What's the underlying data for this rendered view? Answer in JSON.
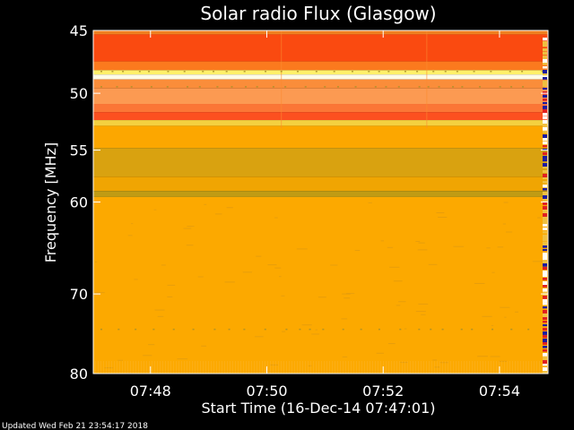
{
  "chart_data": {
    "type": "heatmap",
    "title": "Solar radio Flux (Glasgow)",
    "xlabel": "Start Time (16-Dec-14 07:47:01)",
    "ylabel": "Frequency [MHz]",
    "x_range_minutes": [
      "07:47:01",
      "07:54:50"
    ],
    "x_ticks": [
      "07:48",
      "07:50",
      "07:52",
      "07:54"
    ],
    "y_range_mhz": [
      45,
      80
    ],
    "y_scale": "log",
    "y_ticks": [
      45,
      50,
      55,
      60,
      70,
      80
    ],
    "segment_boundaries": [
      "07:50:15",
      "07:52:45"
    ],
    "bands": [
      {
        "from_mhz": 45.0,
        "to_mhz": 45.3,
        "color": "#f08020"
      },
      {
        "from_mhz": 45.3,
        "to_mhz": 47.4,
        "color": "#fa4a10"
      },
      {
        "from_mhz": 47.4,
        "to_mhz": 48.1,
        "color": "#fb7a1e"
      },
      {
        "from_mhz": 48.1,
        "to_mhz": 48.45,
        "color": "#fff06a"
      },
      {
        "from_mhz": 48.45,
        "to_mhz": 48.85,
        "color": "#fffbe6"
      },
      {
        "from_mhz": 48.85,
        "to_mhz": 49.6,
        "color": "#fa8d3a"
      },
      {
        "from_mhz": 49.6,
        "to_mhz": 50.9,
        "color": "#fc9a52"
      },
      {
        "from_mhz": 50.9,
        "to_mhz": 51.6,
        "color": "#fb7636"
      },
      {
        "from_mhz": 51.6,
        "to_mhz": 52.3,
        "color": "#fc5020"
      },
      {
        "from_mhz": 52.3,
        "to_mhz": 52.8,
        "color": "#f4d040"
      },
      {
        "from_mhz": 52.8,
        "to_mhz": 54.8,
        "color": "#fca700"
      },
      {
        "from_mhz": 54.8,
        "to_mhz": 57.5,
        "color": "#d9a210"
      },
      {
        "from_mhz": 57.5,
        "to_mhz": 58.9,
        "color": "#f0a502"
      },
      {
        "from_mhz": 58.9,
        "to_mhz": 59.5,
        "color": "#c09b14"
      },
      {
        "from_mhz": 59.5,
        "to_mhz": 80.0,
        "color": "#fca900"
      }
    ],
    "colors": {
      "background": "#000000",
      "text": "#ffffff",
      "right_edge_dark": "#1a1aa0",
      "right_edge_red": "#e02020"
    }
  },
  "footer": {
    "updated": "Updated Wed Feb 21 23:54:17 2018"
  }
}
